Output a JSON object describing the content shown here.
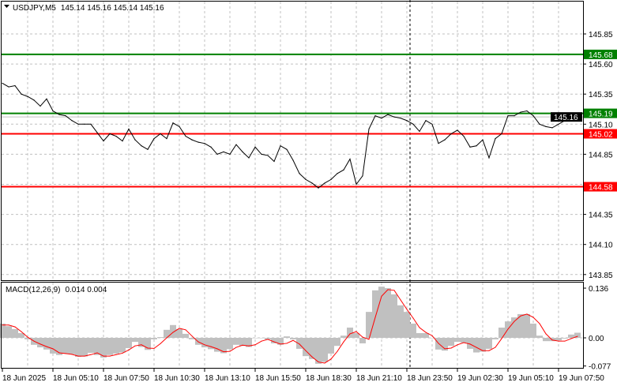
{
  "header": {
    "symbol": "USDJPY,M5",
    "ohlc": "145.14 145.16 145.14 145.16",
    "menu_icon": "triangle-down-icon"
  },
  "macd_header": {
    "label": "MACD(12,26,9)",
    "values": "0.014 0.004"
  },
  "colors": {
    "price_line": "#000000",
    "support": "#ff0000",
    "resistance": "#008000",
    "bid_line": "#c0c0c0",
    "histogram": "#c0c0c0",
    "signal": "#ff0000"
  },
  "levels": [
    {
      "price": 145.68,
      "label": "145.68",
      "color": "#008000"
    },
    {
      "price": 145.19,
      "label": "145.19",
      "color": "#008000"
    },
    {
      "price": 145.02,
      "label": "145.02",
      "color": "#ff0000"
    },
    {
      "price": 144.58,
      "label": "144.58",
      "color": "#ff0000"
    }
  ],
  "bid": {
    "price": 145.16,
    "label": "145.16"
  },
  "chart_data": [
    {
      "type": "line",
      "title": "USDJPY,M5",
      "ylim": [
        143.8,
        146.05
      ],
      "grid": true,
      "y_ticks": [
        "145.85",
        "145.60",
        "145.35",
        "145.10",
        "144.85",
        "144.35",
        "144.10",
        "143.85"
      ],
      "x_ticks": [
        "18 Jun 2025",
        "18 Jun 05:10",
        "18 Jun 07:50",
        "18 Jun 10:30",
        "18 Jun 13:10",
        "18 Jun 15:50",
        "18 Jun 18:30",
        "18 Jun 21:10",
        "18 Jun 23:50",
        "19 Jun 02:30",
        "19 Jun 05:10",
        "19 Jun 07:50"
      ],
      "x": [
        "18 02:30",
        "18 02:50",
        "18 03:10",
        "18 03:30",
        "18 03:50",
        "18 04:10",
        "18 04:30",
        "18 04:50",
        "18 05:10",
        "18 05:30",
        "18 05:50",
        "18 06:10",
        "18 06:30",
        "18 06:50",
        "18 07:10",
        "18 07:30",
        "18 07:50",
        "18 08:10",
        "18 08:30",
        "18 08:50",
        "18 09:10",
        "18 09:30",
        "18 09:50",
        "18 10:10",
        "18 10:30",
        "18 10:50",
        "18 11:10",
        "18 11:30",
        "18 11:50",
        "18 12:10",
        "18 12:30",
        "18 12:50",
        "18 13:10",
        "18 13:30",
        "18 13:50",
        "18 14:10",
        "18 14:30",
        "18 14:50",
        "18 15:10",
        "18 15:30",
        "18 15:50",
        "18 16:10",
        "18 16:30",
        "18 16:50",
        "18 17:10",
        "18 17:30",
        "18 17:50",
        "18 18:10",
        "18 18:30",
        "18 18:50",
        "18 19:10",
        "18 19:30",
        "18 19:50",
        "18 20:10",
        "18 20:30",
        "18 20:50",
        "18 21:10",
        "18 21:30",
        "18 21:50",
        "18 22:10",
        "18 22:30",
        "18 22:50",
        "18 23:10",
        "18 23:30",
        "18 23:50",
        "19 00:10",
        "19 00:30",
        "19 00:50",
        "19 01:10",
        "19 01:30",
        "19 01:50",
        "19 02:10",
        "19 02:30",
        "19 02:50",
        "19 03:10",
        "19 03:30",
        "19 03:50",
        "19 04:10",
        "19 04:30",
        "19 04:50",
        "19 05:10",
        "19 05:30",
        "19 05:50",
        "19 06:10",
        "19 06:30",
        "19 06:50",
        "19 07:10",
        "19 07:30",
        "19 07:50",
        "19 08:10",
        "19 08:30",
        "19 08:50"
      ],
      "series": [
        {
          "values": [
            145.44,
            145.41,
            145.42,
            145.35,
            145.33,
            145.3,
            145.25,
            145.31,
            145.21,
            145.18,
            145.17,
            145.13,
            145.1,
            145.1,
            145.1,
            145.03,
            144.96,
            145.02,
            145.0,
            144.96,
            145.06,
            144.97,
            144.92,
            144.89,
            144.98,
            145.02,
            144.98,
            145.11,
            145.08,
            145.0,
            144.97,
            144.95,
            144.94,
            144.91,
            144.85,
            144.87,
            144.85,
            144.93,
            144.87,
            144.82,
            144.91,
            144.85,
            144.84,
            144.79,
            144.92,
            144.89,
            144.8,
            144.69,
            144.64,
            144.61,
            144.57,
            144.61,
            144.64,
            144.69,
            144.72,
            144.81,
            144.6,
            144.67,
            145.06,
            145.17,
            145.15,
            145.18,
            145.16,
            145.15,
            145.13,
            145.1,
            145.04,
            145.13,
            145.1,
            144.94,
            144.97,
            145.02,
            145.05,
            145.0,
            144.91,
            144.92,
            144.97,
            144.82,
            144.98,
            145.02,
            145.17,
            145.17,
            145.2,
            145.21,
            145.17,
            145.1,
            145.08,
            145.07,
            145.1,
            145.13,
            145.15,
            145.16
          ]
        }
      ]
    },
    {
      "type": "bar",
      "title": "MACD(12,26,9)",
      "ylim": [
        -0.085,
        0.145
      ],
      "y_ticks": [
        "0.136",
        "0.00",
        "-0.077"
      ],
      "series": [
        {
          "name": "MACD",
          "type": "bar",
          "values": [
            0.039,
            0.032,
            0.024,
            0.013,
            -0.004,
            -0.019,
            -0.026,
            -0.032,
            -0.043,
            -0.047,
            -0.043,
            -0.045,
            -0.052,
            -0.051,
            -0.041,
            -0.047,
            -0.054,
            -0.047,
            -0.043,
            -0.04,
            -0.028,
            -0.011,
            -0.025,
            -0.033,
            -0.004,
            0.002,
            0.022,
            0.035,
            0.024,
            0.011,
            -0.004,
            -0.019,
            -0.026,
            -0.031,
            -0.038,
            -0.042,
            -0.031,
            -0.019,
            -0.022,
            -0.025,
            0.0,
            0.0,
            -0.004,
            -0.015,
            -0.019,
            0.004,
            -0.004,
            -0.03,
            -0.05,
            -0.058,
            -0.071,
            -0.066,
            -0.043,
            -0.022,
            0.006,
            0.028,
            0.013,
            -0.015,
            0.071,
            0.13,
            0.14,
            0.136,
            0.119,
            0.089,
            0.071,
            0.039,
            0.013,
            0.013,
            0.0,
            -0.032,
            -0.035,
            -0.022,
            -0.011,
            -0.013,
            -0.03,
            -0.04,
            -0.038,
            -0.03,
            -0.004,
            0.028,
            0.045,
            0.056,
            0.065,
            0.065,
            0.039,
            0.006,
            -0.009,
            -0.009,
            -0.007,
            -0.002,
            0.009,
            0.014
          ]
        },
        {
          "name": "Signal",
          "type": "line",
          "values": [
            0.035,
            0.035,
            0.03,
            0.017,
            0.002,
            -0.009,
            -0.017,
            -0.024,
            -0.03,
            -0.041,
            -0.043,
            -0.045,
            -0.05,
            -0.05,
            -0.046,
            -0.041,
            -0.05,
            -0.05,
            -0.046,
            -0.042,
            -0.033,
            -0.022,
            -0.019,
            -0.028,
            -0.029,
            -0.016,
            0.0,
            0.015,
            0.026,
            0.022,
            0.005,
            -0.011,
            -0.019,
            -0.024,
            -0.03,
            -0.038,
            -0.037,
            -0.026,
            -0.02,
            -0.022,
            -0.019,
            -0.009,
            -0.004,
            -0.011,
            -0.017,
            -0.015,
            -0.007,
            -0.017,
            -0.035,
            -0.052,
            -0.066,
            -0.069,
            -0.058,
            -0.037,
            -0.011,
            0.011,
            0.017,
            0.002,
            -0.004,
            0.056,
            0.114,
            0.132,
            0.13,
            0.104,
            0.078,
            0.054,
            0.028,
            0.015,
            0.006,
            -0.015,
            -0.03,
            -0.028,
            -0.019,
            -0.013,
            -0.017,
            -0.026,
            -0.035,
            -0.035,
            -0.026,
            -0.002,
            0.024,
            0.045,
            0.06,
            0.065,
            0.056,
            0.039,
            0.011,
            -0.006,
            -0.009,
            -0.009,
            -0.002,
            0.004
          ]
        }
      ]
    }
  ]
}
